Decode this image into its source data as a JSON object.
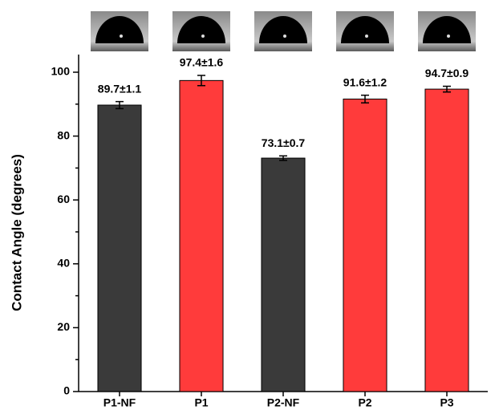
{
  "chart_data": {
    "type": "bar",
    "ylabel": "Contact Angle (degrees)",
    "categories": [
      "P1-NF",
      "P1",
      "P2-NF",
      "P2",
      "P3"
    ],
    "values": [
      89.7,
      97.4,
      73.1,
      91.6,
      94.7
    ],
    "errors": [
      1.1,
      1.6,
      0.7,
      1.2,
      0.9
    ],
    "value_labels": [
      "89.7±1.1",
      "97.4±1.6",
      "73.1±0.7",
      "91.6±1.2",
      "94.7±0.9"
    ],
    "colors": [
      "#3a3a3a",
      "#ff3b3b",
      "#3a3a3a",
      "#ff3b3b",
      "#ff3b3b"
    ],
    "ylim": [
      0,
      100
    ],
    "yticks": [
      0,
      20,
      40,
      60,
      80,
      100
    ]
  }
}
